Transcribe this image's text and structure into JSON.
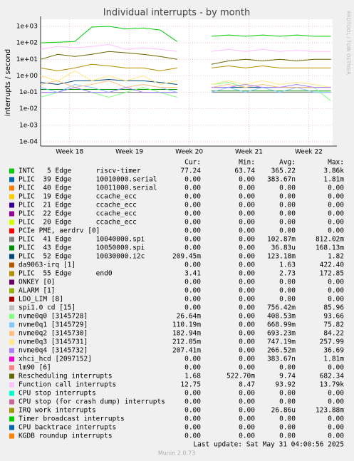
{
  "chart_data": {
    "type": "line",
    "title": "Individual interrupts - by month",
    "y_label": "interrupts / second",
    "side_text": "RRDTOOL / TOBI OETIKER",
    "log_y": true,
    "grid": true,
    "ylim": [
      5.5e-05,
      2700
    ],
    "yticks": [
      {
        "value": 0.0001,
        "label": "1e-04"
      },
      {
        "value": 0.001,
        "label": "1e-03"
      },
      {
        "value": 0.01,
        "label": "1e-02"
      },
      {
        "value": 0.1,
        "label": "1e-01"
      },
      {
        "value": 1,
        "label": "1e+00"
      },
      {
        "value": 10,
        "label": "1e+01"
      },
      {
        "value": 100,
        "label": "1e+02"
      },
      {
        "value": 1000,
        "label": "1e+03"
      }
    ],
    "xlim": [
      0,
      34.2
    ],
    "xticks": [
      {
        "value": 3.4,
        "label": "Week 18"
      },
      {
        "value": 10.4,
        "label": "Week 19"
      },
      {
        "value": 17.4,
        "label": "Week 20"
      },
      {
        "value": 24.4,
        "label": "Week 21"
      },
      {
        "value": 31.4,
        "label": "Week 22"
      }
    ],
    "x": [
      0,
      2,
      4,
      6,
      8,
      10,
      12,
      14,
      16,
      18,
      20,
      22,
      24,
      26,
      28,
      30,
      32,
      34
    ],
    "legend_columns": [
      "Cur:",
      "Min:",
      "Avg:",
      "Max:"
    ],
    "series": [
      {
        "name": "INTC   5 Edge      riscv-timer",
        "color": "#00cc00",
        "stats": [
          "77.24",
          "63.74",
          "365.22",
          "3.86k"
        ],
        "values": [
          100,
          110,
          120,
          900,
          1000,
          700,
          800,
          600,
          120,
          null,
          250,
          300,
          250,
          300,
          250,
          300,
          250,
          250
        ]
      },
      {
        "name": "PLIC  39 Edge      10010000.serial",
        "color": "#0066b3",
        "stats": [
          "0.00",
          "0.00",
          "383.67n",
          "1.81m"
        ]
      },
      {
        "name": "PLIC  40 Edge      10011000.serial",
        "color": "#ff8000",
        "stats": [
          "0.00",
          "0.00",
          "0.00",
          "0.00"
        ]
      },
      {
        "name": "PLIC  19 Edge      ccache_ecc",
        "color": "#ffcc00",
        "stats": [
          "0.00",
          "0.00",
          "0.00",
          "0.00"
        ]
      },
      {
        "name": "PLIC  21 Edge      ccache_ecc",
        "color": "#330099",
        "stats": [
          "0.00",
          "0.00",
          "0.00",
          "0.00"
        ]
      },
      {
        "name": "PLIC  22 Edge      ccache_ecc",
        "color": "#990099",
        "stats": [
          "0.00",
          "0.00",
          "0.00",
          "0.00"
        ]
      },
      {
        "name": "PLIC  20 Edge      ccache_ecc",
        "color": "#ccff00",
        "stats": [
          "0.00",
          "0.00",
          "0.00",
          "0.00"
        ]
      },
      {
        "name": "PCIe PME, aerdrv [0]",
        "color": "#ff0000",
        "stats": [
          "0.00",
          "0.00",
          "0.00",
          "0.00"
        ]
      },
      {
        "name": "PLIC  41 Edge      10040000.spi",
        "color": "#808080",
        "stats": [
          "0.00",
          "0.00",
          "102.87m",
          "812.02m"
        ],
        "values": [
          0.1,
          0.1,
          0.1,
          0.1,
          0.1,
          0.1,
          0.1,
          0.1,
          0.1,
          null,
          0.1,
          0.1,
          0.1,
          0.1,
          0.1,
          0.1,
          0.1,
          0.1
        ]
      },
      {
        "name": "PLIC  43 Edge      10050000.spi",
        "color": "#008f00",
        "stats": [
          "0.00",
          "0.00",
          "36.83u",
          "168.13m"
        ],
        "values": [
          0.15,
          0.15,
          0.15,
          0.15,
          0.15,
          0.15,
          0.15,
          0.15,
          0.15,
          null,
          0.12,
          0.12,
          0.12,
          0.12,
          0.12,
          0.12,
          0.12,
          0.12
        ]
      },
      {
        "name": "PLIC  52 Edge      10030000.i2c",
        "color": "#00487d",
        "stats": [
          "209.45m",
          "0.00",
          "123.18m",
          "1.82"
        ],
        "values": [
          0.4,
          0.3,
          0.5,
          0.5,
          0.6,
          0.5,
          0.5,
          0.4,
          0.3,
          null,
          0.2,
          0.2,
          0.2,
          0.2,
          0.2,
          0.2,
          0.2,
          0.2
        ]
      },
      {
        "name": "da9063-irq [1]",
        "color": "#b35a00",
        "stats": [
          "0.00",
          "0.00",
          "1.63",
          "422.40"
        ]
      },
      {
        "name": "PLIC  55 Edge      end0",
        "color": "#b38f00",
        "stats": [
          "3.41",
          "0.00",
          "2.73",
          "172.85"
        ],
        "values": [
          3,
          2,
          3,
          5,
          4,
          3,
          3,
          2,
          3,
          null,
          3,
          4,
          3,
          4,
          3,
          3,
          3,
          3
        ]
      },
      {
        "name": "ONKEY [0]",
        "color": "#6b006b",
        "stats": [
          "0.00",
          "0.00",
          "0.00",
          "0.00"
        ]
      },
      {
        "name": "ALARM [1]",
        "color": "#8fb300",
        "stats": [
          "0.00",
          "0.00",
          "0.00",
          "0.00"
        ]
      },
      {
        "name": "LDO_LIM [8]",
        "color": "#b30000",
        "stats": [
          "0.00",
          "0.00",
          "0.00",
          "0.00"
        ]
      },
      {
        "name": "spi1.0 cd [15]",
        "color": "#bebebe",
        "stats": [
          "0.00",
          "0.00",
          "756.42m",
          "85.96"
        ]
      },
      {
        "name": "nvme0q0 [3145728]",
        "color": "#80ff80",
        "stats": [
          "26.64m",
          "0.00",
          "408.53m",
          "93.66"
        ],
        "values": [
          0.05,
          0.1,
          0.2,
          0.1,
          0.05,
          0.1,
          0.2,
          0.1,
          0.05,
          null,
          0.3,
          0.4,
          0.2,
          0.3,
          0.2,
          0.3,
          0.2,
          0.03
        ]
      },
      {
        "name": "nvme0q1 [3145729]",
        "color": "#80c9ff",
        "stats": [
          "110.19m",
          "0.00",
          "668.99m",
          "75.82"
        ],
        "values": [
          0.2,
          0.1,
          0.3,
          0.2,
          0.1,
          0.2,
          0.3,
          0.2,
          0.1,
          null,
          0.1,
          0.2,
          0.1,
          0.2,
          0.1,
          0.2,
          0.1,
          0.1
        ]
      },
      {
        "name": "nvme0q2 [3145730]",
        "color": "#ffc080",
        "stats": [
          "182.94m",
          "0.00",
          "693.23m",
          "84.22"
        ],
        "values": [
          0.3,
          0.5,
          0.2,
          0.3,
          0.5,
          0.2,
          0.3,
          0.2,
          0.2,
          null,
          0.2,
          0.3,
          0.2,
          0.3,
          0.2,
          0.2,
          0.2,
          0.2
        ]
      },
      {
        "name": "nvme0q3 [3145731]",
        "color": "#ffe680",
        "stats": [
          "212.05m",
          "0.00",
          "747.19m",
          "257.99"
        ],
        "values": [
          1,
          0.5,
          2,
          0.5,
          1,
          0.5,
          1,
          0.3,
          0.5,
          null,
          0.3,
          0.5,
          0.3,
          0.5,
          0.3,
          0.4,
          0.3,
          0.2
        ]
      },
      {
        "name": "nvme0q4 [3145732]",
        "color": "#aa80ff",
        "stats": [
          "207.41m",
          "0.00",
          "266.52m",
          "36.69"
        ],
        "values": [
          0.1,
          0.1,
          0.2,
          0.1,
          0.1,
          0.2,
          0.1,
          0.1,
          0.1,
          null,
          0.2,
          0.2,
          0.3,
          0.2,
          0.2,
          0.3,
          0.2,
          0.2
        ]
      },
      {
        "name": "xhci_hcd [2097152]",
        "color": "#ee00cc",
        "stats": [
          "0.00",
          "0.00",
          "383.67n",
          "1.81m"
        ]
      },
      {
        "name": "lm90 [6]",
        "color": "#ff8080",
        "stats": [
          "0.00",
          "0.00",
          "0.00",
          "0.00"
        ]
      },
      {
        "name": "Rescheduling interrupts",
        "color": "#666600",
        "stats": [
          "1.68",
          "522.70m",
          "9.74",
          "682.34"
        ],
        "values": [
          10,
          20,
          15,
          20,
          30,
          25,
          20,
          15,
          10,
          null,
          5,
          8,
          10,
          8,
          10,
          8,
          10,
          10
        ]
      },
      {
        "name": "Function call interrupts",
        "color": "#ffbfff",
        "stats": [
          "12.75",
          "8.47",
          "93.92",
          "13.79k"
        ],
        "values": [
          40,
          60,
          50,
          60,
          80,
          40,
          50,
          40,
          30,
          null,
          30,
          40,
          30,
          40,
          30,
          35,
          30,
          30
        ]
      },
      {
        "name": "CPU stop interrupts",
        "color": "#00ffcc",
        "stats": [
          "0.00",
          "0.00",
          "0.00",
          "0.00"
        ]
      },
      {
        "name": "CPU stop (for crash dump) interrupts",
        "color": "#cc6699",
        "stats": [
          "0.00",
          "0.00",
          "0.00",
          "0.00"
        ]
      },
      {
        "name": "IRQ work interrupts",
        "color": "#999900",
        "stats": [
          "0.00",
          "0.00",
          "26.86u",
          "123.88m"
        ]
      },
      {
        "name": "Timer broadcast interrupts",
        "color": "#00cc00",
        "stats": [
          "0.00",
          "0.00",
          "0.00",
          "0.00"
        ]
      },
      {
        "name": "CPU backtrace interrupts",
        "color": "#0066b3",
        "stats": [
          "0.00",
          "0.00",
          "0.00",
          "0.00"
        ]
      },
      {
        "name": "KGDB roundup interrupts",
        "color": "#ff8000",
        "stats": [
          "0.00",
          "0.00",
          "0.00",
          "0.00"
        ]
      }
    ],
    "last_update": "Last update: Sat May 31 04:00:56 2025",
    "footer": "Munin 2.0.73"
  }
}
